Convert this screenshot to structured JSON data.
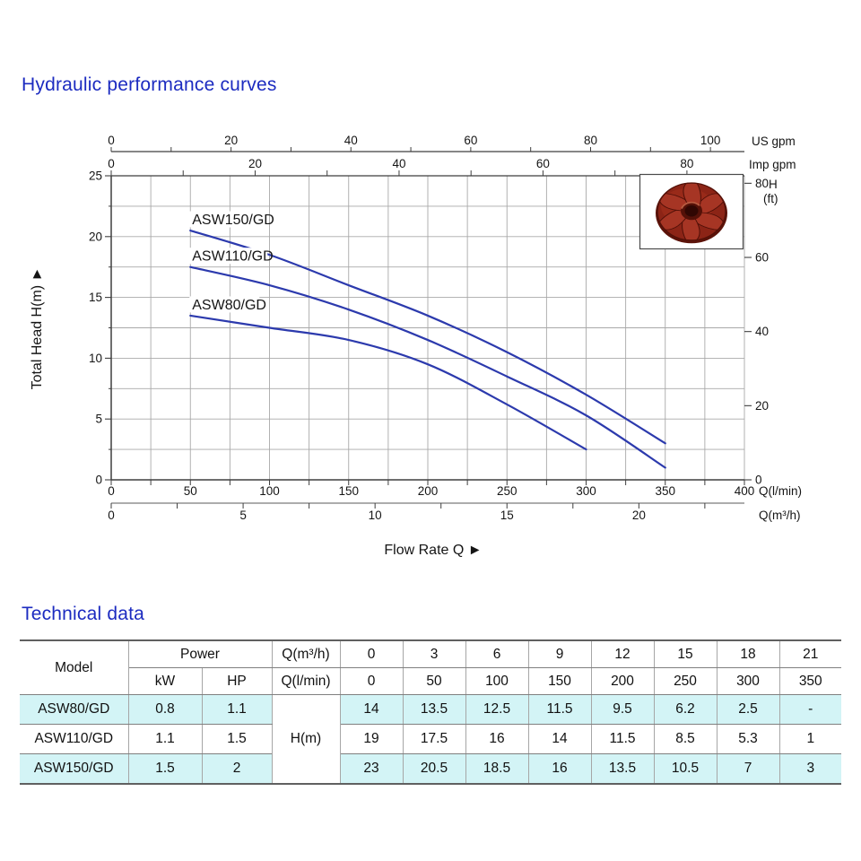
{
  "sections": {
    "curves_title": "Hydraulic performance curves",
    "technical_title": "Technical data"
  },
  "chart_data": {
    "type": "line",
    "title": "Hydraulic performance curves",
    "xlabel": "Flow Rate Q",
    "ylabel": "Total Head H(m)",
    "grid": true,
    "legend_position": "inline-curve-labels",
    "curve_color": "#2c3aad",
    "axes": {
      "q_lmin": {
        "label": "Q(l/min)",
        "min": 0,
        "max": 400,
        "tick_labels": [
          0,
          50,
          100,
          150,
          200,
          250,
          300,
          350,
          400
        ],
        "minor_step": 25
      },
      "q_m3h": {
        "label": "Q(m³/h)",
        "tick_labels": [
          0,
          5,
          10,
          15,
          20
        ],
        "minor_step": 2.5
      },
      "us_gpm": {
        "label": "US gpm",
        "tick_labels": [
          0,
          20,
          40,
          60,
          80,
          100
        ],
        "minor_step": 10
      },
      "imp_gpm": {
        "label": "Imp gpm",
        "tick_labels": [
          0,
          20,
          40,
          60,
          80
        ],
        "minor_step": 10
      },
      "head_m": {
        "label": "Total Head H(m)",
        "min": 0,
        "max": 25,
        "tick_labels": [
          0,
          5,
          10,
          15,
          20,
          25
        ],
        "minor_step": 2.5
      },
      "head_ft": {
        "label_top": "H",
        "label_bottom": "(ft)",
        "tick_labels": [
          80,
          60,
          40,
          20,
          0
        ]
      }
    },
    "series": [
      {
        "name": "ASW150/GD",
        "x_lmin": [
          50,
          100,
          150,
          200,
          250,
          300,
          350
        ],
        "head_m": [
          20.5,
          18.5,
          16,
          13.5,
          10.5,
          7,
          3
        ]
      },
      {
        "name": "ASW110/GD",
        "x_lmin": [
          50,
          100,
          150,
          200,
          250,
          300,
          350
        ],
        "head_m": [
          17.5,
          16,
          14,
          11.5,
          8.5,
          5.3,
          1
        ]
      },
      {
        "name": "ASW80/GD",
        "x_lmin": [
          50,
          100,
          150,
          200,
          250,
          300
        ],
        "head_m": [
          13.5,
          12.5,
          11.5,
          9.5,
          6.2,
          2.5
        ]
      }
    ],
    "inset_image": "pump-impeller-photo"
  },
  "table": {
    "model_header": "Model",
    "power_header": "Power",
    "kw_label": "kW",
    "hp_label": "HP",
    "q_m3h_label": "Q(m³/h)",
    "q_lmin_label": "Q(l/min)",
    "h_label": "H(m)",
    "flow_m3h": [
      "0",
      "3",
      "6",
      "9",
      "12",
      "15",
      "18",
      "21"
    ],
    "flow_lmin": [
      "0",
      "50",
      "100",
      "150",
      "200",
      "250",
      "300",
      "350"
    ],
    "rows": [
      {
        "model": "ASW80/GD",
        "kw": "0.8",
        "hp": "1.1",
        "highlight": true,
        "head_m": [
          "14",
          "13.5",
          "12.5",
          "11.5",
          "9.5",
          "6.2",
          "2.5",
          "-"
        ]
      },
      {
        "model": "ASW110/GD",
        "kw": "1.1",
        "hp": "1.5",
        "highlight": false,
        "head_m": [
          "19",
          "17.5",
          "16",
          "14",
          "11.5",
          "8.5",
          "5.3",
          "1"
        ]
      },
      {
        "model": "ASW150/GD",
        "kw": "1.5",
        "hp": "2",
        "highlight": true,
        "head_m": [
          "23",
          "20.5",
          "18.5",
          "16",
          "13.5",
          "10.5",
          "7",
          "3"
        ]
      }
    ],
    "highlight_color": "#d3f4f6"
  },
  "colors": {
    "accent": "#1c2bc0",
    "curve": "#2c3aad",
    "grid": "#a9a9a9",
    "axis": "#3f3f3f",
    "impeller_red": "#8c2416"
  }
}
